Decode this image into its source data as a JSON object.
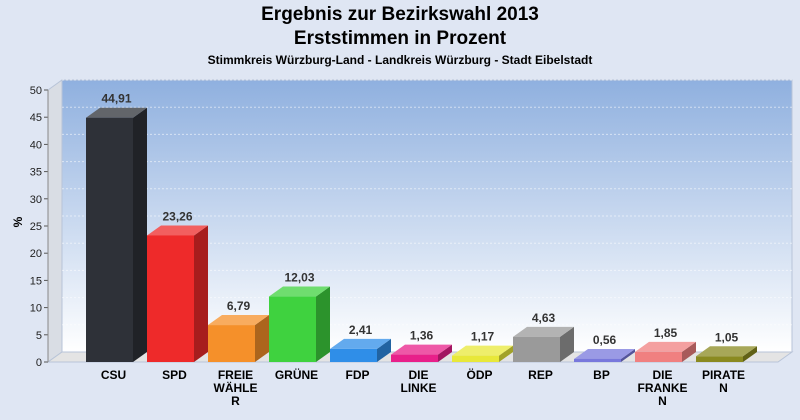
{
  "chart_data": {
    "type": "bar",
    "title": "Ergebnis zur Bezirkswahl 2013",
    "subtitle": "Erststimmen in Prozent",
    "caption": "Stimmkreis Würzburg-Land - Landkreis Würzburg - Stadt Eibelstadt",
    "ylabel": "%",
    "ylim": [
      0,
      50
    ],
    "yticks": [
      0,
      5,
      10,
      15,
      20,
      25,
      30,
      35,
      40,
      45,
      50
    ],
    "grid": true,
    "categories": [
      [
        "CSU"
      ],
      [
        "SPD"
      ],
      [
        "FREIE",
        "WÄHLE",
        "R"
      ],
      [
        "GRÜNE"
      ],
      [
        "FDP"
      ],
      [
        "DIE",
        "LINKE"
      ],
      [
        "ÖDP"
      ],
      [
        "REP"
      ],
      [
        "BP"
      ],
      [
        "DIE",
        "FRANKE",
        "N"
      ],
      [
        "PIRATE",
        "N"
      ]
    ],
    "values": [
      44.91,
      23.26,
      6.79,
      12.03,
      2.41,
      1.36,
      1.17,
      4.63,
      0.56,
      1.85,
      1.05
    ],
    "value_labels": [
      "44,91",
      "23,26",
      "6,79",
      "12,03",
      "2,41",
      "1,36",
      "1,17",
      "4,63",
      "0,56",
      "1,85",
      "1,05"
    ],
    "colors": [
      "#2e3138",
      "#ee2a2a",
      "#f5902a",
      "#3fd23f",
      "#2f8ee8",
      "#e8208a",
      "#e8e83a",
      "#9a9a9a",
      "#7878dc",
      "#f08080",
      "#8a8a20"
    ]
  }
}
